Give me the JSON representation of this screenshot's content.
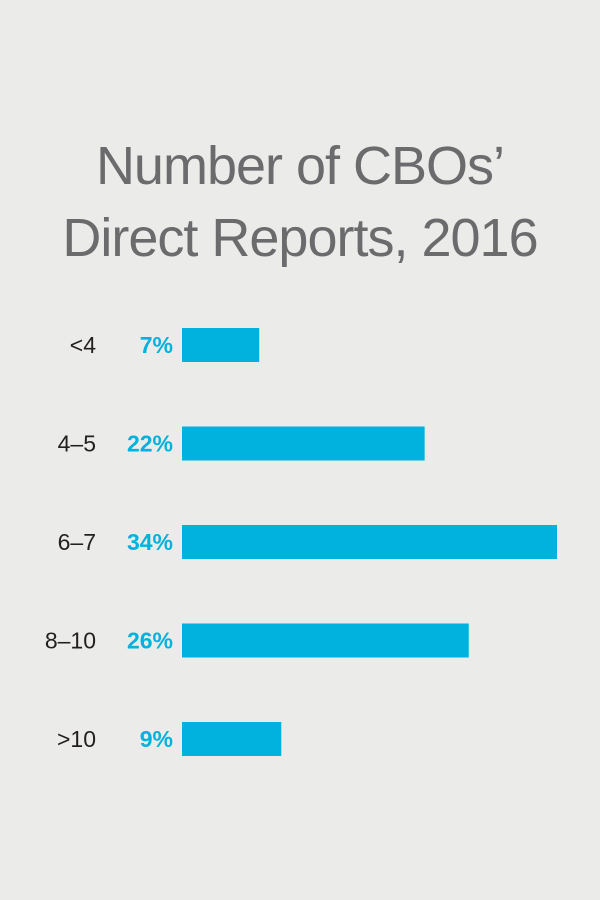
{
  "chart_data": {
    "type": "bar",
    "orientation": "horizontal",
    "title_lines": [
      "Number of CBOs’",
      "Direct Reports, 2016"
    ],
    "categories": [
      "<4",
      "4–5",
      "6–7",
      "8–10",
      ">10"
    ],
    "values": [
      7,
      22,
      34,
      26,
      9
    ],
    "value_labels": [
      "7%",
      "22%",
      "34%",
      "26%",
      "9%"
    ],
    "unit": "%",
    "xlim": [
      0,
      34
    ],
    "grid": false,
    "legend": "none",
    "colors": {
      "background": "#ebebea",
      "bar": "#00b2dd",
      "value_label": "#00b2dd",
      "title": "#6b6b6d",
      "category_label": "#231f20"
    }
  }
}
